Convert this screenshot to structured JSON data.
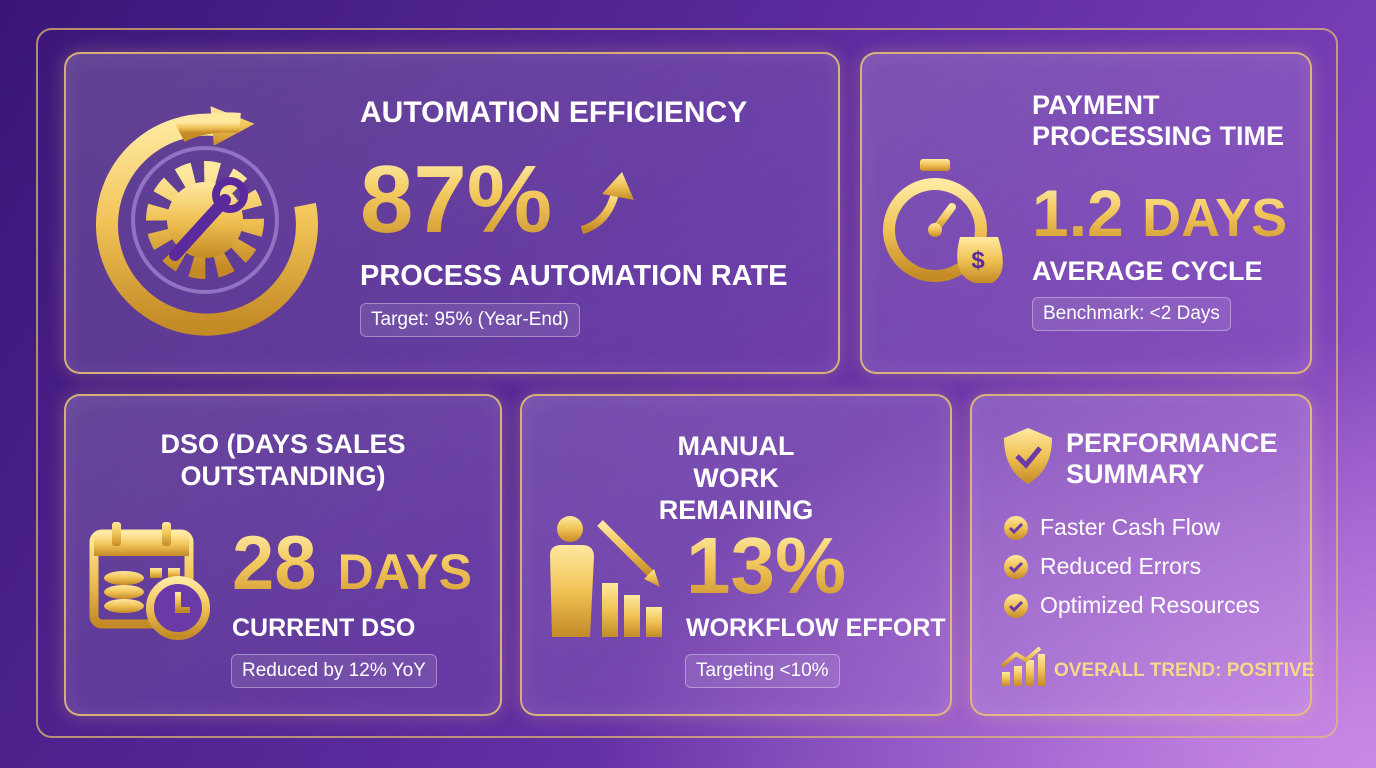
{
  "cards": [
    {
      "title": "AUTOMATION EFFICIENCY",
      "value": "87%",
      "label": "PROCESS AUTOMATION RATE",
      "note": "Target: 95% (Year-End)"
    },
    {
      "title": "PAYMENT PROCESSING TIME",
      "value": "1.2",
      "unit": "DAYS",
      "label": "AVERAGE CYCLE",
      "note": "Benchmark: <2 Days"
    },
    {
      "title": "DSO (DAYS SALES OUTSTANDING)",
      "value": "28",
      "unit": "DAYS",
      "label": "CURRENT DSO",
      "note": "Reduced by 12% YoY"
    },
    {
      "title": "MANUAL WORK REMAINING",
      "value": "13%",
      "label": "WORKFLOW EFFORT",
      "note": "Targeting <10%"
    }
  ],
  "summary": {
    "title": "PERFORMANCE SUMMARY",
    "items": [
      "Faster Cash Flow",
      "Reduced Errors",
      "Optimized Resources"
    ],
    "trend": "OVERALL TREND: POSITIVE"
  }
}
